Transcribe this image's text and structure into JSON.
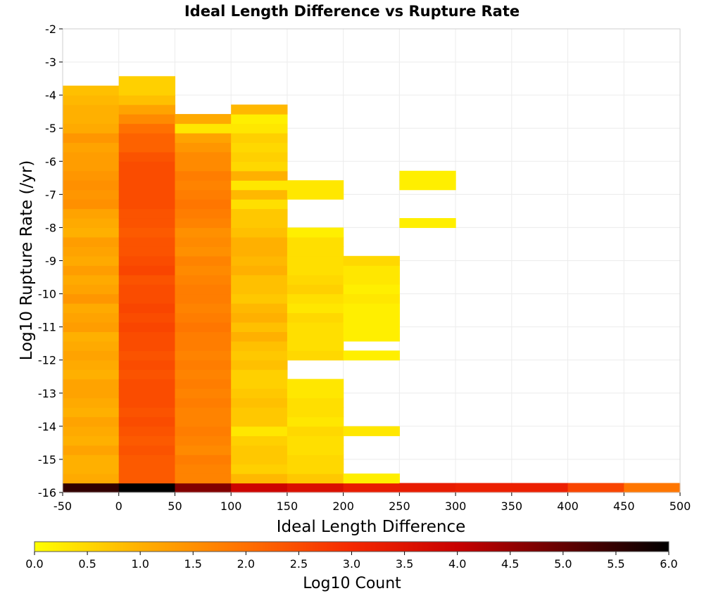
{
  "chart_data": {
    "type": "heatmap",
    "title": "Ideal Length Difference vs Rupture Rate",
    "xlabel": "Ideal Length Difference",
    "ylabel": "Log10 Rupture Rate (/yr)",
    "xlim": [
      -50,
      500
    ],
    "ylim": [
      -16,
      -2
    ],
    "x_ticks": [
      "-50",
      "0",
      "50",
      "100",
      "150",
      "200",
      "250",
      "300",
      "350",
      "400",
      "450",
      "500"
    ],
    "y_ticks": [
      "-2",
      "-3",
      "-4",
      "-5",
      "-6",
      "-7",
      "-8",
      "-9",
      "-10",
      "-11",
      "-12",
      "-13",
      "-14",
      "-15",
      "-16"
    ],
    "grid": true,
    "x_bin_width": 50,
    "y_bin_height": 0.2857,
    "colorbar": {
      "label": "Log10 Count",
      "range": [
        0.0,
        6.0
      ],
      "ticks": [
        "0.0",
        "0.5",
        "1.0",
        "1.5",
        "2.0",
        "2.5",
        "3.0",
        "3.5",
        "4.0",
        "4.5",
        "5.0",
        "5.5",
        "6.0"
      ],
      "colormap": [
        "#ffff00",
        "#ffb000",
        "#ff7000",
        "#f52800",
        "#c80000",
        "#640000",
        "#000000"
      ]
    },
    "columns": [
      {
        "x_start": -50,
        "y_bottom": -16,
        "values": [
          5.5,
          1.1,
          1.0,
          1.0,
          1.2,
          1.0,
          1.1,
          1.2,
          1.0,
          1.1,
          1.2,
          1.2,
          1.0,
          1.1,
          1.2,
          1.1,
          1.0,
          1.3,
          1.2,
          1.1,
          1.4,
          1.2,
          1.1,
          1.3,
          1.1,
          1.2,
          1.3,
          1.0,
          1.1,
          1.2,
          1.5,
          1.4,
          1.5,
          1.4,
          1.3,
          1.3,
          1.2,
          1.4,
          1.1,
          1.0,
          1.0,
          0.9,
          0.8
        ]
      },
      {
        "x_start": 0,
        "y_bottom": -16,
        "values": [
          6.0,
          2.3,
          2.3,
          2.3,
          2.4,
          2.3,
          2.4,
          2.5,
          2.4,
          2.5,
          2.5,
          2.5,
          2.4,
          2.5,
          2.4,
          2.5,
          2.5,
          2.6,
          2.5,
          2.6,
          2.5,
          2.5,
          2.4,
          2.6,
          2.5,
          2.4,
          2.4,
          2.3,
          2.4,
          2.4,
          2.5,
          2.5,
          2.5,
          2.5,
          2.5,
          2.4,
          2.2,
          2.2,
          2.0,
          1.6,
          1.2,
          0.8,
          0.6,
          0.6
        ]
      },
      {
        "x_start": 50,
        "y_bottom": -16,
        "values": [
          4.7,
          1.7,
          1.7,
          1.8,
          1.6,
          1.7,
          1.8,
          1.7,
          1.7,
          1.8,
          1.7,
          1.8,
          1.7,
          1.8,
          1.7,
          1.8,
          1.8,
          1.9,
          1.8,
          1.7,
          1.8,
          1.8,
          1.7,
          1.6,
          1.7,
          1.5,
          1.6,
          1.5,
          1.7,
          1.8,
          1.9,
          1.8,
          1.7,
          1.8,
          1.6,
          1.6,
          1.4,
          1.2,
          0.3,
          1.1
        ]
      },
      {
        "x_start": 100,
        "y_bottom": -16,
        "values": [
          3.9,
          0.9,
          0.6,
          0.7,
          0.7,
          0.6,
          0.3,
          0.7,
          0.7,
          0.8,
          0.7,
          0.6,
          0.6,
          0.8,
          0.7,
          0.8,
          1.0,
          0.8,
          1.0,
          0.9,
          0.7,
          0.8,
          0.8,
          1.0,
          0.9,
          1.0,
          1.0,
          0.8,
          0.7,
          0.7,
          0.4,
          0.9,
          0.3,
          1.0,
          0.5,
          0.6,
          0.5,
          0.6,
          0.3,
          0.2,
          0.9
        ]
      },
      {
        "x_start": 150,
        "y_bottom": -16,
        "values": [
          3.6,
          0.7,
          0.5,
          0.5,
          0.4,
          0.4,
          0.5,
          0.3,
          0.4,
          0.4,
          0.3,
          0.3,
          null,
          null,
          0.5,
          0.4,
          0.4,
          0.4,
          0.5,
          0.3,
          0.4,
          0.6,
          0.5,
          0.4,
          0.4,
          0.4,
          0.4,
          0.2,
          null,
          null,
          null,
          0.3,
          0.3
        ]
      },
      {
        "x_start": 200,
        "y_bottom": -16,
        "values": [
          3.3,
          0.2,
          null,
          null,
          null,
          null,
          0.3,
          null,
          null,
          null,
          null,
          null,
          null,
          null,
          0.2,
          null,
          0.2,
          0.2,
          0.2,
          0.2,
          0.3,
          0.2,
          0.3,
          0.3,
          0.5
        ]
      },
      {
        "x_start": 250,
        "y_bottom": -16,
        "values": [
          3.3,
          null,
          null,
          null,
          null,
          null,
          null,
          null,
          null,
          null,
          null,
          null,
          null,
          null,
          null,
          null,
          null,
          null,
          null,
          null,
          null,
          null,
          null,
          null,
          null,
          null,
          null,
          null,
          0.2,
          null,
          null,
          null,
          0.2,
          0.2
        ]
      },
      {
        "x_start": 300,
        "y_bottom": -16,
        "values": [
          3.2
        ]
      },
      {
        "x_start": 350,
        "y_bottom": -16,
        "values": [
          3.2
        ]
      },
      {
        "x_start": 400,
        "y_bottom": -16,
        "values": [
          2.6
        ]
      },
      {
        "x_start": 450,
        "y_bottom": -16,
        "values": [
          1.9
        ]
      }
    ]
  }
}
